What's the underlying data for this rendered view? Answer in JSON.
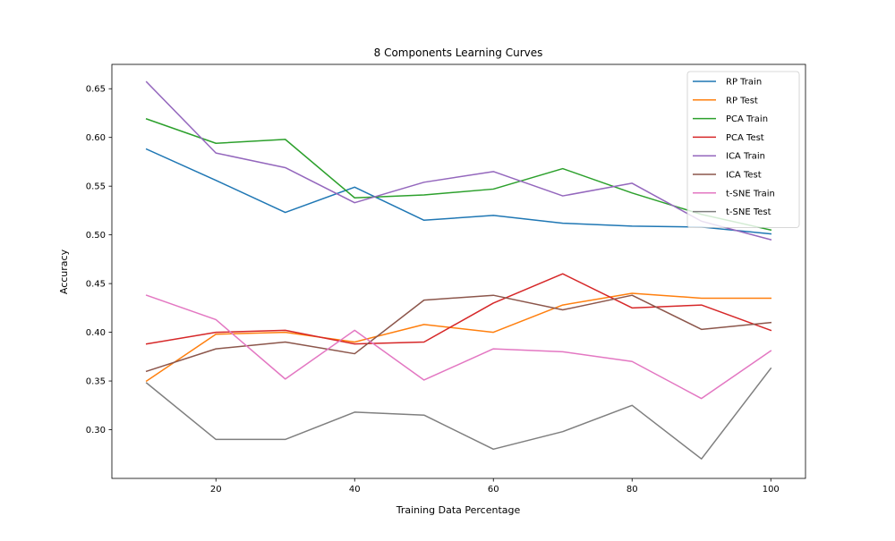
{
  "chart_data": {
    "type": "line",
    "title": "8 Components Learning Curves",
    "xlabel": "Training Data Percentage",
    "ylabel": "Accuracy",
    "xlim": [
      5,
      105
    ],
    "ylim": [
      0.25,
      0.675
    ],
    "xticks": [
      20,
      40,
      60,
      80,
      100
    ],
    "yticks": [
      0.3,
      0.35,
      0.4,
      0.45,
      0.5,
      0.55,
      0.6,
      0.65
    ],
    "ytick_labels": [
      "0.30",
      "0.35",
      "0.40",
      "0.45",
      "0.50",
      "0.55",
      "0.60",
      "0.65"
    ],
    "grid": false,
    "legend_position": "top-right",
    "x": [
      10,
      20,
      30,
      40,
      50,
      60,
      70,
      80,
      90,
      100
    ],
    "series": [
      {
        "name": "RP Train",
        "color": "#1f77b4",
        "values": [
          0.588,
          0.556,
          0.523,
          0.549,
          0.515,
          0.52,
          0.512,
          0.509,
          0.508,
          0.501
        ]
      },
      {
        "name": "RP Test",
        "color": "#ff7f0e",
        "values": [
          0.35,
          0.398,
          0.4,
          0.39,
          0.408,
          0.4,
          0.428,
          0.44,
          0.435,
          0.435
        ]
      },
      {
        "name": "PCA Train",
        "color": "#2ca02c",
        "values": [
          0.619,
          0.594,
          0.598,
          0.538,
          0.541,
          0.547,
          0.568,
          0.543,
          0.521,
          0.505
        ]
      },
      {
        "name": "PCA Test",
        "color": "#d62728",
        "values": [
          0.388,
          0.4,
          0.402,
          0.388,
          0.39,
          0.43,
          0.46,
          0.425,
          0.428,
          0.402
        ]
      },
      {
        "name": "ICA Train",
        "color": "#9467bd",
        "values": [
          0.657,
          0.584,
          0.569,
          0.533,
          0.554,
          0.565,
          0.54,
          0.553,
          0.514,
          0.495
        ]
      },
      {
        "name": "ICA Test",
        "color": "#8c564b",
        "values": [
          0.36,
          0.383,
          0.39,
          0.378,
          0.433,
          0.438,
          0.423,
          0.438,
          0.403,
          0.41
        ]
      },
      {
        "name": "t-SNE Train",
        "color": "#e377c2",
        "values": [
          0.438,
          0.413,
          0.352,
          0.402,
          0.351,
          0.383,
          0.38,
          0.37,
          0.332,
          0.381
        ]
      },
      {
        "name": "t-SNE Test",
        "color": "#7f7f7f",
        "values": [
          0.348,
          0.29,
          0.29,
          0.318,
          0.315,
          0.28,
          0.298,
          0.325,
          0.27,
          0.363
        ]
      }
    ]
  }
}
